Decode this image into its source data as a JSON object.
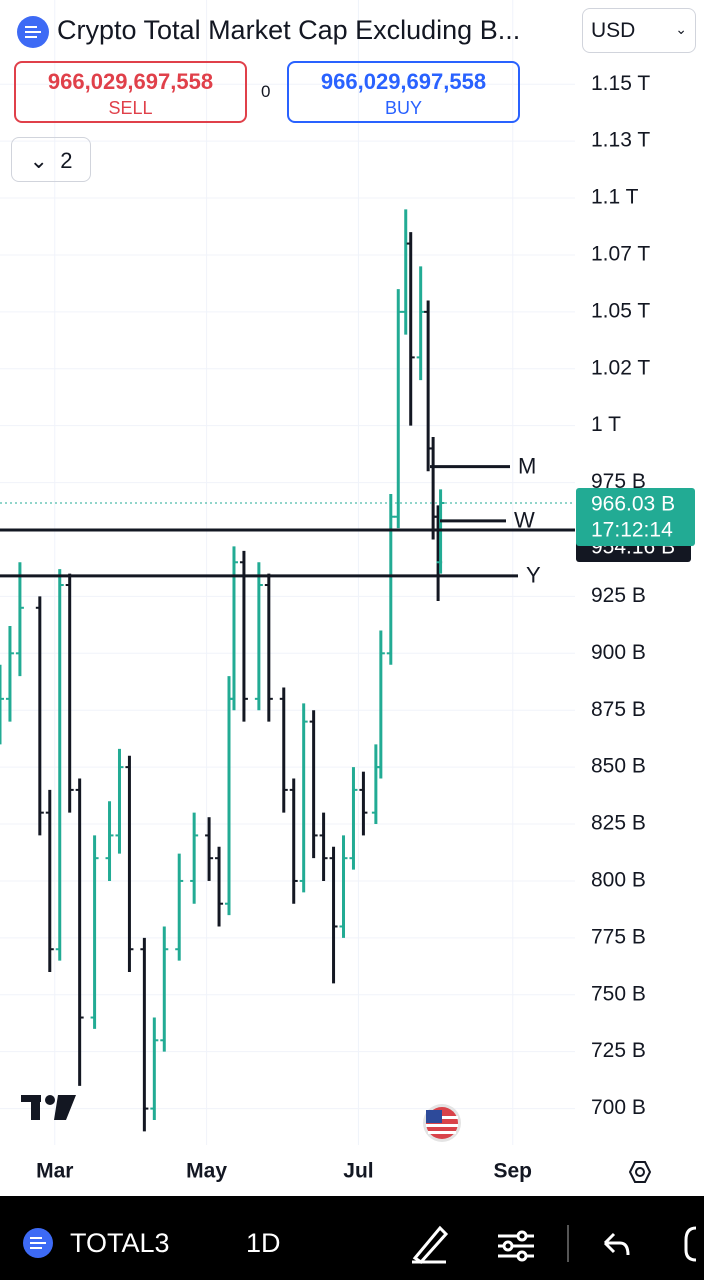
{
  "header": {
    "title": "Crypto Total Market Cap Excluding B...",
    "currency": "USD",
    "sell_price": "966,029,697,558",
    "sell": "SELL",
    "spread": "0",
    "buy_price": "966,029,697,558",
    "buy": "BUY",
    "indicators": "2"
  },
  "chart_data": {
    "type": "ohlc",
    "up_color": "#22ab94",
    "down_color": "#131722",
    "x": [
      -22,
      -18,
      -14,
      -6,
      -2,
      2,
      6,
      10,
      16,
      22,
      26,
      30,
      36,
      40,
      44,
      50,
      56,
      62,
      66,
      70,
      72,
      76,
      82,
      86,
      92,
      96,
      100,
      104,
      108,
      112,
      116,
      120,
      124,
      129,
      131,
      135,
      138,
      141,
      143,
      147,
      150,
      152,
      154,
      155
    ],
    "open": [
      870,
      880,
      900,
      920,
      830,
      770,
      930,
      840,
      740,
      810,
      820,
      850,
      770,
      700,
      730,
      770,
      800,
      820,
      810,
      790,
      880,
      940,
      880,
      930,
      880,
      840,
      800,
      870,
      820,
      810,
      780,
      810,
      840,
      830,
      850,
      900,
      960,
      1050,
      1080,
      1030,
      1050,
      990,
      960,
      940
    ],
    "high": [
      895,
      912,
      940,
      925,
      840,
      937,
      935,
      845,
      820,
      835,
      858,
      855,
      775,
      740,
      780,
      812,
      830,
      828,
      815,
      890,
      947,
      945,
      940,
      935,
      885,
      845,
      878,
      875,
      830,
      815,
      820,
      850,
      848,
      860,
      910,
      970,
      1060,
      1095,
      1085,
      1070,
      1055,
      995,
      965,
      972
    ],
    "low": [
      860,
      870,
      890,
      820,
      760,
      765,
      830,
      710,
      735,
      800,
      812,
      760,
      690,
      695,
      725,
      765,
      790,
      800,
      780,
      785,
      875,
      870,
      875,
      870,
      830,
      790,
      795,
      810,
      800,
      755,
      775,
      805,
      820,
      825,
      845,
      895,
      955,
      1040,
      1000,
      1020,
      980,
      950,
      923,
      935
    ],
    "close": [
      880,
      900,
      920,
      830,
      770,
      930,
      840,
      740,
      810,
      820,
      850,
      770,
      700,
      730,
      770,
      800,
      820,
      810,
      790,
      880,
      940,
      880,
      930,
      880,
      840,
      800,
      870,
      820,
      810,
      780,
      810,
      840,
      830,
      850,
      900,
      960,
      1050,
      1080,
      1030,
      1050,
      990,
      960,
      940,
      966.03
    ],
    "xlim": [
      -22,
      209
    ],
    "xticks": [
      {
        "value": 0,
        "label": "Mar"
      },
      {
        "value": 61,
        "label": "May"
      },
      {
        "value": 122,
        "label": "Jul"
      },
      {
        "value": 184,
        "label": "Sep"
      }
    ],
    "ylim": [
      684,
      1187
    ],
    "yticks": [
      {
        "value": 1150,
        "label": "1.15 T"
      },
      {
        "value": 1125,
        "label": "1.13 T"
      },
      {
        "value": 1100,
        "label": "1.1 T"
      },
      {
        "value": 1075,
        "label": "1.07 T"
      },
      {
        "value": 1050,
        "label": "1.05 T"
      },
      {
        "value": 1025,
        "label": "1.02 T"
      },
      {
        "value": 1000,
        "label": "1 T"
      },
      {
        "value": 975,
        "label": "975 B"
      },
      {
        "value": 925,
        "label": "925 B"
      },
      {
        "value": 900,
        "label": "900 B"
      },
      {
        "value": 875,
        "label": "875 B"
      },
      {
        "value": 850,
        "label": "850 B"
      },
      {
        "value": 825,
        "label": "825 B"
      },
      {
        "value": 800,
        "label": "800 B"
      },
      {
        "value": 775,
        "label": "775 B"
      },
      {
        "value": 750,
        "label": "750 B"
      },
      {
        "value": 725,
        "label": "725 B"
      },
      {
        "value": 700,
        "label": "700 B"
      }
    ],
    "grid": true,
    "levels": [
      {
        "name": "M",
        "value": 982
      },
      {
        "name": "W",
        "value": 958.2
      },
      {
        "name": "Y",
        "value": 934
      }
    ],
    "price_line": {
      "value": 954.16,
      "label": "954.16 B"
    },
    "last_price": {
      "value": 966.03,
      "label": "966.03 B",
      "countdown": "17:12:14"
    }
  },
  "toolbar": {
    "symbol": "TOTAL3",
    "interval": "1D"
  }
}
